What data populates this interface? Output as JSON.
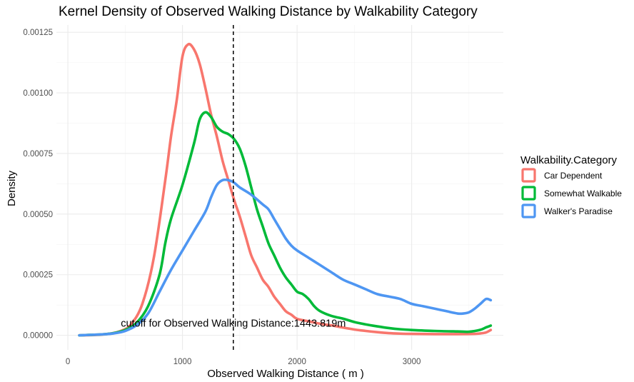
{
  "chart_data": {
    "type": "line",
    "title": "Kernel Density of Observed Walking Distance by Walkability Category",
    "xlabel": "Observed Walking Distance ( m )",
    "ylabel": "Density",
    "xlim": [
      -100,
      3800
    ],
    "ylim": [
      -6e-05,
      0.00128
    ],
    "x_ticks": [
      0,
      1000,
      2000,
      3000
    ],
    "x_tick_labels": [
      "0",
      "1000",
      "2000",
      "3000"
    ],
    "y_ticks": [
      0,
      0.00025,
      0.0005,
      0.00075,
      0.001,
      0.00125
    ],
    "y_tick_labels": [
      "0.00000",
      "0.00025",
      "0.00050",
      "0.00075",
      "0.00100",
      "0.00125"
    ],
    "grid": true,
    "legend": {
      "title": "Walkability.Category",
      "position": "right"
    },
    "series": [
      {
        "name": "Car Dependent",
        "color": "#F8766D",
        "points": [
          [
            100,
            0.0
          ],
          [
            300,
            3e-06
          ],
          [
            450,
            1.6e-05
          ],
          [
            550,
            4.5e-05
          ],
          [
            650,
            0.00013
          ],
          [
            750,
            0.00032
          ],
          [
            850,
            0.00064
          ],
          [
            900,
            0.00082
          ],
          [
            950,
            0.00097
          ],
          [
            1000,
            0.00115
          ],
          [
            1050,
            0.0012
          ],
          [
            1100,
            0.00118
          ],
          [
            1150,
            0.00112
          ],
          [
            1200,
            0.00102
          ],
          [
            1250,
            0.00091
          ],
          [
            1300,
            0.00082
          ],
          [
            1350,
            0.00072
          ],
          [
            1400,
            0.00064
          ],
          [
            1450,
            0.00056
          ],
          [
            1500,
            0.00049
          ],
          [
            1550,
            0.00041
          ],
          [
            1600,
            0.00033
          ],
          [
            1650,
            0.00028
          ],
          [
            1700,
            0.00023
          ],
          [
            1750,
            0.0002
          ],
          [
            1800,
            0.00016
          ],
          [
            1850,
            0.00013
          ],
          [
            1900,
            0.0001
          ],
          [
            1950,
            8.5e-05
          ],
          [
            2000,
            6.8e-05
          ],
          [
            2100,
            5.8e-05
          ],
          [
            2200,
            4.8e-05
          ],
          [
            2300,
            4.1e-05
          ],
          [
            2400,
            3.2e-05
          ],
          [
            2500,
            2.4e-05
          ],
          [
            2600,
            1.8e-05
          ],
          [
            2700,
            1.3e-05
          ],
          [
            2800,
            9e-06
          ],
          [
            2900,
            7e-06
          ],
          [
            3000,
            6e-06
          ],
          [
            3200,
            5e-06
          ],
          [
            3400,
            5e-06
          ],
          [
            3550,
            6e-06
          ],
          [
            3600,
            8e-06
          ],
          [
            3650,
            1.2e-05
          ],
          [
            3690,
            2.2e-05
          ]
        ]
      },
      {
        "name": "Somewhat Walkable",
        "color": "#00BA38",
        "points": [
          [
            100,
            0.0
          ],
          [
            300,
            4e-06
          ],
          [
            400,
            9e-06
          ],
          [
            500,
            2.2e-05
          ],
          [
            600,
            5.2e-05
          ],
          [
            700,
            0.00012
          ],
          [
            800,
            0.00025
          ],
          [
            850,
            0.00038
          ],
          [
            900,
            0.00048
          ],
          [
            1000,
            0.00062
          ],
          [
            1100,
            0.00079
          ],
          [
            1150,
            0.00089
          ],
          [
            1200,
            0.00092
          ],
          [
            1250,
            0.0009
          ],
          [
            1300,
            0.00086
          ],
          [
            1350,
            0.00084
          ],
          [
            1400,
            0.00083
          ],
          [
            1450,
            0.00081
          ],
          [
            1500,
            0.00077
          ],
          [
            1550,
            0.0007
          ],
          [
            1600,
            0.00061
          ],
          [
            1650,
            0.00052
          ],
          [
            1700,
            0.00045
          ],
          [
            1750,
            0.00038
          ],
          [
            1800,
            0.00033
          ],
          [
            1850,
            0.00028
          ],
          [
            1900,
            0.00024
          ],
          [
            1950,
            0.00021
          ],
          [
            2000,
            0.00018
          ],
          [
            2050,
            0.00017
          ],
          [
            2100,
            0.00015
          ],
          [
            2150,
            0.00012
          ],
          [
            2200,
            0.0001
          ],
          [
            2300,
            8e-05
          ],
          [
            2400,
            6.9e-05
          ],
          [
            2500,
            5.5e-05
          ],
          [
            2600,
            4.5e-05
          ],
          [
            2700,
            3.7e-05
          ],
          [
            2800,
            3e-05
          ],
          [
            2900,
            2.5e-05
          ],
          [
            3000,
            2.2e-05
          ],
          [
            3200,
            1.8e-05
          ],
          [
            3400,
            1.6e-05
          ],
          [
            3500,
            1.5e-05
          ],
          [
            3600,
            2.3e-05
          ],
          [
            3650,
            3.3e-05
          ],
          [
            3690,
            4e-05
          ]
        ]
      },
      {
        "name": "Walker's Paradise",
        "color": "#4E96F2",
        "points": [
          [
            100,
            0.0
          ],
          [
            300,
            4e-06
          ],
          [
            400,
            8e-06
          ],
          [
            500,
            1.8e-05
          ],
          [
            600,
            4.2e-05
          ],
          [
            700,
            9e-05
          ],
          [
            800,
            0.00018
          ],
          [
            900,
            0.00027
          ],
          [
            1000,
            0.00035
          ],
          [
            1100,
            0.00043
          ],
          [
            1200,
            0.00051
          ],
          [
            1250,
            0.00057
          ],
          [
            1300,
            0.00062
          ],
          [
            1350,
            0.00064
          ],
          [
            1400,
            0.00064
          ],
          [
            1450,
            0.00063
          ],
          [
            1500,
            0.00061
          ],
          [
            1600,
            0.00058
          ],
          [
            1700,
            0.00054
          ],
          [
            1750,
            0.00052
          ],
          [
            1800,
            0.00048
          ],
          [
            1850,
            0.00044
          ],
          [
            1900,
            0.0004
          ],
          [
            1950,
            0.00037
          ],
          [
            2000,
            0.00035
          ],
          [
            2100,
            0.00032
          ],
          [
            2200,
            0.00029
          ],
          [
            2300,
            0.00026
          ],
          [
            2400,
            0.00023
          ],
          [
            2500,
            0.00021
          ],
          [
            2600,
            0.00019
          ],
          [
            2700,
            0.00017
          ],
          [
            2800,
            0.00016
          ],
          [
            2900,
            0.00015
          ],
          [
            3000,
            0.00013
          ],
          [
            3100,
            0.00012
          ],
          [
            3200,
            0.00011
          ],
          [
            3300,
            0.0001
          ],
          [
            3400,
            9e-05
          ],
          [
            3450,
            9e-05
          ],
          [
            3500,
            9.5e-05
          ],
          [
            3550,
            0.00011
          ],
          [
            3600,
            0.00013
          ],
          [
            3650,
            0.00015
          ],
          [
            3690,
            0.000145
          ]
        ]
      }
    ],
    "vline": {
      "x": 1443.819,
      "label": "cutoff for Observed Walking Distance:1443.819m",
      "label_y": 5e-05
    }
  }
}
